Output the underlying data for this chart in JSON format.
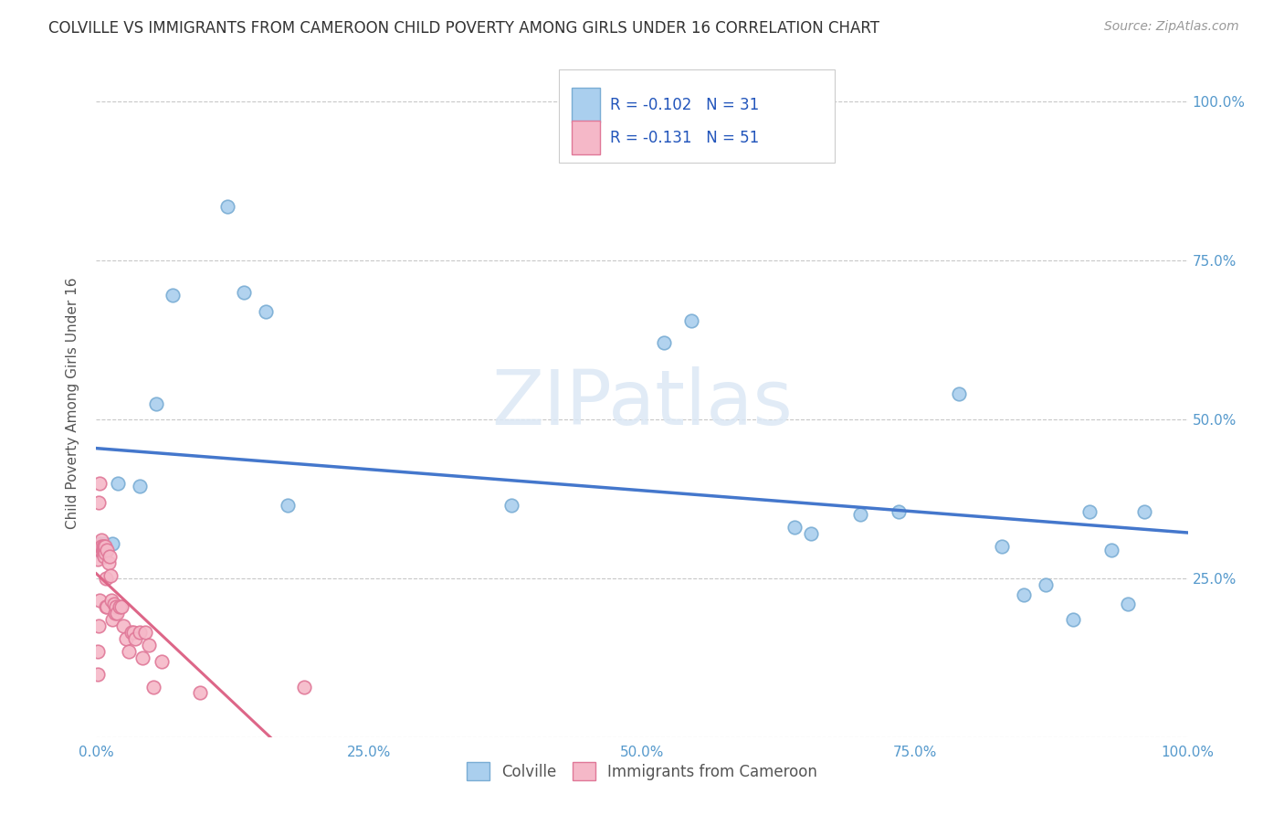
{
  "title": "COLVILLE VS IMMIGRANTS FROM CAMEROON CHILD POVERTY AMONG GIRLS UNDER 16 CORRELATION CHART",
  "source": "Source: ZipAtlas.com",
  "ylabel": "Child Poverty Among Girls Under 16",
  "background_color": "#ffffff",
  "plot_bg_color": "#ffffff",
  "grid_color": "#c8c8c8",
  "colville_color": "#aacfee",
  "colville_edge_color": "#7aadd4",
  "cameroon_color": "#f5b8c8",
  "cameroon_edge_color": "#e07898",
  "colville_R": -0.102,
  "colville_N": 31,
  "cameroon_R": -0.131,
  "cameroon_N": 51,
  "colville_line_color": "#4477cc",
  "cameroon_line_color": "#dd6688",
  "title_color": "#333333",
  "axis_color": "#5599cc",
  "legend_R_color": "#2255bb",
  "colville_points_x": [
    0.003,
    0.005,
    0.006,
    0.007,
    0.007,
    0.009,
    0.015,
    0.02,
    0.04,
    0.055,
    0.07,
    0.12,
    0.135,
    0.155,
    0.175,
    0.38,
    0.52,
    0.545,
    0.64,
    0.655,
    0.7,
    0.735,
    0.79,
    0.83,
    0.85,
    0.87,
    0.895,
    0.91,
    0.93,
    0.945,
    0.96
  ],
  "colville_points_y": [
    0.305,
    0.29,
    0.3,
    0.305,
    0.285,
    0.295,
    0.305,
    0.4,
    0.395,
    0.525,
    0.695,
    0.835,
    0.7,
    0.67,
    0.365,
    0.365,
    0.62,
    0.655,
    0.33,
    0.32,
    0.35,
    0.355,
    0.54,
    0.3,
    0.225,
    0.24,
    0.185,
    0.355,
    0.295,
    0.21,
    0.355
  ],
  "cameroon_points_x": [
    0.001,
    0.001,
    0.001,
    0.002,
    0.002,
    0.002,
    0.003,
    0.003,
    0.003,
    0.004,
    0.004,
    0.005,
    0.005,
    0.006,
    0.006,
    0.006,
    0.007,
    0.007,
    0.007,
    0.008,
    0.008,
    0.008,
    0.009,
    0.009,
    0.01,
    0.01,
    0.011,
    0.012,
    0.013,
    0.014,
    0.015,
    0.016,
    0.017,
    0.018,
    0.019,
    0.021,
    0.023,
    0.025,
    0.027,
    0.03,
    0.032,
    0.034,
    0.036,
    0.04,
    0.042,
    0.045,
    0.048,
    0.052,
    0.06,
    0.095,
    0.19
  ],
  "cameroon_points_y": [
    0.28,
    0.1,
    0.135,
    0.175,
    0.3,
    0.37,
    0.4,
    0.295,
    0.215,
    0.295,
    0.3,
    0.31,
    0.3,
    0.295,
    0.29,
    0.3,
    0.295,
    0.3,
    0.285,
    0.295,
    0.29,
    0.3,
    0.205,
    0.25,
    0.295,
    0.205,
    0.275,
    0.285,
    0.255,
    0.215,
    0.185,
    0.21,
    0.195,
    0.205,
    0.195,
    0.205,
    0.205,
    0.175,
    0.155,
    0.135,
    0.165,
    0.165,
    0.155,
    0.165,
    0.125,
    0.165,
    0.145,
    0.08,
    0.12,
    0.07,
    0.08
  ],
  "xlim": [
    0.0,
    1.0
  ],
  "ylim": [
    0.0,
    1.05
  ],
  "xticks": [
    0.0,
    0.25,
    0.5,
    0.75,
    1.0
  ],
  "xtick_labels": [
    "0.0%",
    "25.0%",
    "50.0%",
    "75.0%",
    "100.0%"
  ],
  "yticks": [
    0.0,
    0.25,
    0.5,
    0.75,
    1.0
  ],
  "right_ytick_labels": [
    "",
    "25.0%",
    "50.0%",
    "75.0%",
    "100.0%"
  ],
  "marker_size": 110,
  "title_fontsize": 12,
  "axis_label_fontsize": 11,
  "tick_fontsize": 11,
  "legend_fontsize": 12
}
